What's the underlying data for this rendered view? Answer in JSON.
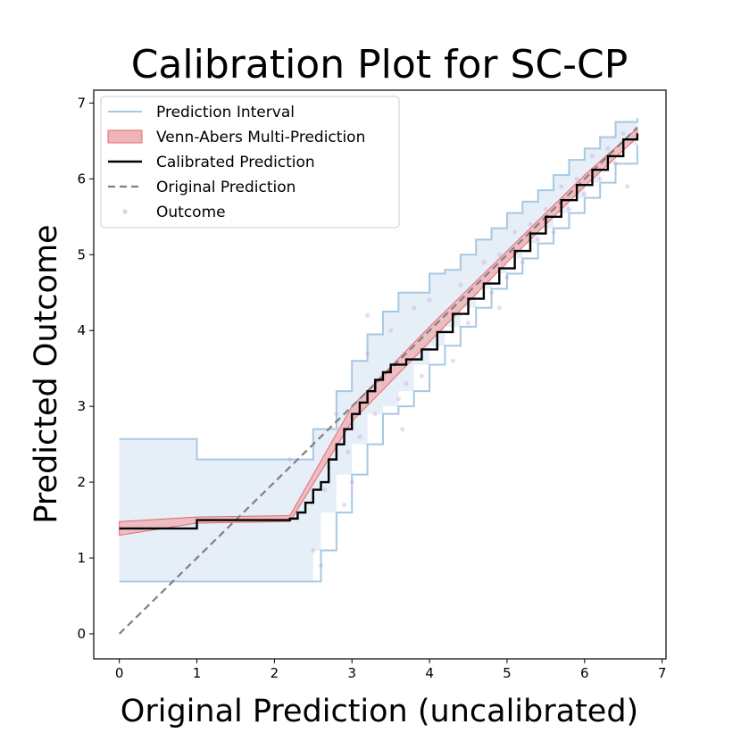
{
  "chart_data": {
    "type": "line",
    "title": "Calibration Plot for SC-CP",
    "xlabel": "Original Prediction (uncalibrated)",
    "ylabel": "Predicted Outcome",
    "xlim": [
      -0.33,
      7.05
    ],
    "ylim": [
      -0.33,
      7.17
    ],
    "xticks": [
      0,
      1,
      2,
      3,
      4,
      5,
      6,
      7
    ],
    "yticks": [
      0,
      1,
      2,
      3,
      4,
      5,
      6,
      7
    ],
    "legend_position": "top-left",
    "legend": [
      {
        "key": "interval",
        "label": "Prediction Interval"
      },
      {
        "key": "venn",
        "label": "Venn-Abers Multi-Prediction"
      },
      {
        "key": "calibrated",
        "label": "Calibrated Prediction"
      },
      {
        "key": "original",
        "label": "Original Prediction"
      },
      {
        "key": "outcome",
        "label": "Outcome"
      }
    ],
    "colors": {
      "interval_line": "#a6c8e3",
      "interval_fill": "#e6eff7",
      "venn_fill": "#eeb4b7",
      "venn_edge": "#e26a70",
      "calibrated": "#000000",
      "original": "#808080",
      "outcome": "#c79bd8"
    },
    "series": [
      {
        "name": "Calibrated Prediction",
        "points": [
          [
            0,
            1.39
          ],
          [
            1.0,
            1.5
          ],
          [
            2.2,
            1.52
          ],
          [
            2.3,
            1.6
          ],
          [
            2.4,
            1.73
          ],
          [
            2.5,
            1.9
          ],
          [
            2.6,
            2.0
          ],
          [
            2.7,
            2.3
          ],
          [
            2.8,
            2.5
          ],
          [
            2.9,
            2.7
          ],
          [
            3.0,
            2.9
          ],
          [
            3.1,
            3.05
          ],
          [
            3.2,
            3.2
          ],
          [
            3.3,
            3.35
          ],
          [
            3.4,
            3.45
          ],
          [
            3.5,
            3.55
          ],
          [
            3.7,
            3.62
          ],
          [
            3.9,
            3.75
          ],
          [
            4.1,
            3.98
          ],
          [
            4.3,
            4.22
          ],
          [
            4.5,
            4.42
          ],
          [
            4.7,
            4.62
          ],
          [
            4.9,
            4.82
          ],
          [
            5.1,
            5.05
          ],
          [
            5.3,
            5.28
          ],
          [
            5.5,
            5.5
          ],
          [
            5.7,
            5.72
          ],
          [
            5.9,
            5.92
          ],
          [
            6.1,
            6.12
          ],
          [
            6.3,
            6.3
          ],
          [
            6.5,
            6.52
          ],
          [
            6.68,
            6.6
          ]
        ]
      },
      {
        "name": "Original Prediction",
        "points": [
          [
            0,
            0
          ],
          [
            6.68,
            6.68
          ]
        ]
      }
    ],
    "venn_abers_band": {
      "lower": [
        [
          0,
          1.3
        ],
        [
          1.0,
          1.46
        ],
        [
          2.2,
          1.48
        ],
        [
          3.0,
          2.8
        ],
        [
          4.0,
          3.85
        ],
        [
          5.0,
          4.9
        ],
        [
          6.0,
          5.9
        ],
        [
          6.68,
          6.55
        ]
      ],
      "upper": [
        [
          0,
          1.48
        ],
        [
          1.0,
          1.54
        ],
        [
          2.2,
          1.56
        ],
        [
          3.0,
          3.0
        ],
        [
          4.0,
          4.05
        ],
        [
          5.0,
          5.05
        ],
        [
          6.0,
          6.05
        ],
        [
          6.68,
          6.67
        ]
      ]
    },
    "prediction_interval": {
      "upper": [
        [
          0,
          2.57
        ],
        [
          1.0,
          2.3
        ],
        [
          2.2,
          2.3
        ],
        [
          2.5,
          2.7
        ],
        [
          2.8,
          3.2
        ],
        [
          3.0,
          3.6
        ],
        [
          3.2,
          3.95
        ],
        [
          3.4,
          4.25
        ],
        [
          3.6,
          4.5
        ],
        [
          3.8,
          4.5
        ],
        [
          4.0,
          4.75
        ],
        [
          4.2,
          4.8
        ],
        [
          4.4,
          5.0
        ],
        [
          4.6,
          5.2
        ],
        [
          4.8,
          5.35
        ],
        [
          5.0,
          5.55
        ],
        [
          5.2,
          5.7
        ],
        [
          5.4,
          5.85
        ],
        [
          5.6,
          6.05
        ],
        [
          5.8,
          6.25
        ],
        [
          6.0,
          6.4
        ],
        [
          6.2,
          6.55
        ],
        [
          6.4,
          6.75
        ],
        [
          6.68,
          6.8
        ]
      ],
      "lower": [
        [
          0,
          0.69
        ],
        [
          2.5,
          0.69
        ],
        [
          2.6,
          1.1
        ],
        [
          2.8,
          1.6
        ],
        [
          3.0,
          2.1
        ],
        [
          3.2,
          2.5
        ],
        [
          3.4,
          2.9
        ],
        [
          3.6,
          3.0
        ],
        [
          3.8,
          3.2
        ],
        [
          4.0,
          3.55
        ],
        [
          4.2,
          3.8
        ],
        [
          4.4,
          4.05
        ],
        [
          4.6,
          4.3
        ],
        [
          4.8,
          4.55
        ],
        [
          5.0,
          4.75
        ],
        [
          5.2,
          4.95
        ],
        [
          5.4,
          5.15
        ],
        [
          5.6,
          5.35
        ],
        [
          5.8,
          5.55
        ],
        [
          6.0,
          5.75
        ],
        [
          6.2,
          5.95
        ],
        [
          6.4,
          6.2
        ],
        [
          6.68,
          6.45
        ]
      ]
    },
    "outcomes": [
      [
        2.2,
        2.3
      ],
      [
        2.3,
        1.7
      ],
      [
        2.5,
        1.1
      ],
      [
        2.6,
        0.9
      ],
      [
        2.7,
        2.2
      ],
      [
        2.8,
        2.9
      ],
      [
        2.9,
        1.7
      ],
      [
        3.0,
        2.0
      ],
      [
        3.1,
        2.6
      ],
      [
        3.2,
        3.7
      ],
      [
        3.3,
        2.9
      ],
      [
        3.4,
        3.3
      ],
      [
        3.5,
        4.0
      ],
      [
        3.6,
        3.1
      ],
      [
        3.7,
        3.3
      ],
      [
        3.8,
        4.3
      ],
      [
        3.9,
        3.4
      ],
      [
        4.0,
        4.4
      ],
      [
        4.1,
        3.8
      ],
      [
        4.2,
        4.2
      ],
      [
        4.3,
        3.6
      ],
      [
        4.4,
        4.6
      ],
      [
        4.5,
        4.1
      ],
      [
        4.6,
        4.5
      ],
      [
        4.7,
        4.9
      ],
      [
        4.8,
        4.5
      ],
      [
        4.9,
        5.0
      ],
      [
        5.0,
        4.7
      ],
      [
        5.1,
        5.3
      ],
      [
        5.2,
        4.9
      ],
      [
        5.3,
        5.4
      ],
      [
        5.4,
        5.2
      ],
      [
        5.5,
        5.6
      ],
      [
        5.6,
        5.3
      ],
      [
        5.7,
        5.9
      ],
      [
        5.8,
        5.6
      ],
      [
        5.9,
        6.0
      ],
      [
        6.0,
        5.8
      ],
      [
        6.1,
        6.3
      ],
      [
        6.2,
        6.0
      ],
      [
        6.3,
        6.4
      ],
      [
        6.4,
        6.2
      ],
      [
        6.5,
        6.6
      ],
      [
        6.6,
        6.5
      ],
      [
        6.55,
        5.9
      ],
      [
        4.9,
        4.3
      ],
      [
        3.2,
        4.2
      ],
      [
        2.95,
        2.4
      ],
      [
        3.65,
        2.7
      ],
      [
        2.65,
        1.9
      ]
    ]
  }
}
